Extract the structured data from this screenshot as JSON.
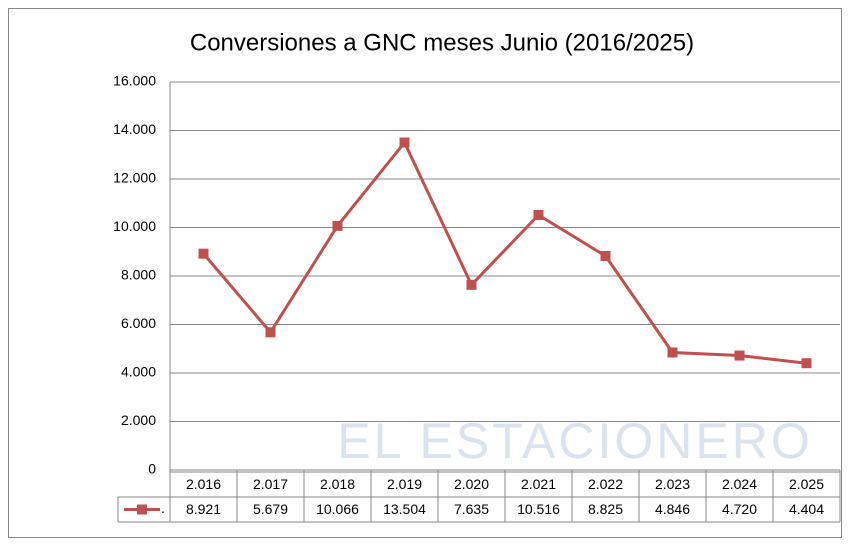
{
  "chart_data": {
    "type": "line",
    "title": "Conversiones a GNC  meses Junio (2016/2025)",
    "watermark": "EL ESTACIONERO",
    "categories": [
      "2.016",
      "2.017",
      "2.018",
      "2.019",
      "2.020",
      "2.021",
      "2.022",
      "2.023",
      "2.024",
      "2.025"
    ],
    "series": [
      {
        "name": ".",
        "color": "#c0504d",
        "values": [
          8921,
          5679,
          10066,
          13504,
          7635,
          10516,
          8825,
          4846,
          4720,
          4404
        ],
        "value_labels": [
          "8.921",
          "5.679",
          "10.066",
          "13.504",
          "7.635",
          "10.516",
          "8.825",
          "4.846",
          "4.720",
          "4.404"
        ]
      }
    ],
    "ylim": [
      0,
      16000
    ],
    "yticks": [
      0,
      {
        "value": 2000,
        "label": "2.000"
      },
      {
        "value": 4000,
        "label": "4.000"
      },
      {
        "value": 6000,
        "label": "6.000"
      },
      {
        "value": 8000,
        "label": "8.000"
      },
      {
        "value": 10000,
        "label": "10.000"
      },
      {
        "value": 12000,
        "label": "12.000"
      },
      {
        "value": 14000,
        "label": "14.000"
      },
      {
        "value": 16000,
        "label": "16.000"
      }
    ],
    "grid": true
  }
}
